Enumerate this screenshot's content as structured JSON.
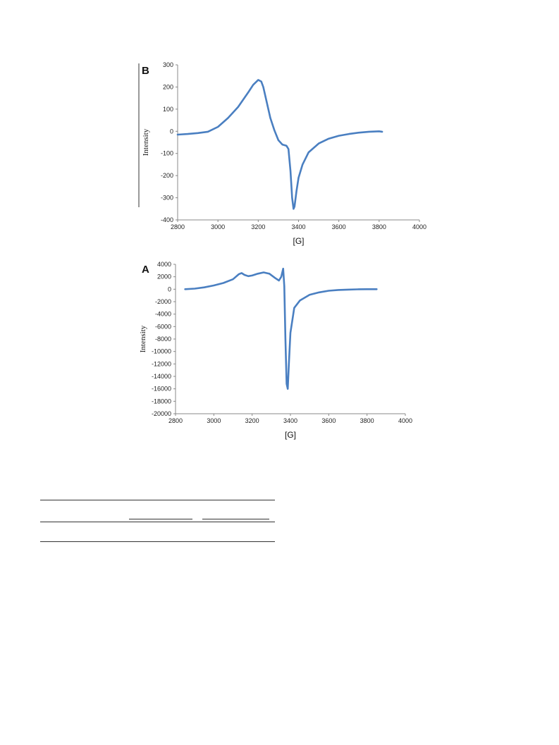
{
  "chart_data": [
    {
      "type": "line",
      "panel": "B",
      "xlabel": "[G]",
      "ylabel": "Intensity",
      "xlim": [
        2800,
        4000
      ],
      "ylim": [
        -400,
        300
      ],
      "xticks": [
        2800,
        3000,
        3200,
        3400,
        3600,
        3800,
        4000
      ],
      "yticks": [
        300,
        200,
        100,
        0,
        -100,
        -200,
        -300,
        -400
      ],
      "color": "#4a7fc1",
      "series": [
        {
          "x": [
            2800,
            2850,
            2900,
            2950,
            3000,
            3050,
            3100,
            3150,
            3175,
            3200,
            3215,
            3225,
            3240,
            3260,
            3280,
            3300,
            3320,
            3340,
            3350,
            3360,
            3368,
            3375,
            3380,
            3390,
            3400,
            3420,
            3450,
            3500,
            3550,
            3600,
            3650,
            3700,
            3750,
            3800,
            3815
          ],
          "y": [
            -15,
            -12,
            -8,
            -2,
            20,
            60,
            110,
            175,
            210,
            232,
            225,
            200,
            140,
            60,
            5,
            -40,
            -60,
            -65,
            -80,
            -180,
            -300,
            -350,
            -340,
            -270,
            -210,
            -150,
            -95,
            -55,
            -33,
            -20,
            -12,
            -6,
            -2,
            0,
            -2
          ]
        }
      ]
    },
    {
      "type": "line",
      "panel": "A",
      "xlabel": "[G]",
      "ylabel": "Intensity",
      "xlim": [
        2800,
        4000
      ],
      "ylim": [
        -20000,
        4000
      ],
      "xticks": [
        2800,
        3000,
        3200,
        3400,
        3600,
        3800,
        4000
      ],
      "yticks": [
        4000,
        2000,
        0,
        -2000,
        -4000,
        -6000,
        -8000,
        -10000,
        -12000,
        -14000,
        -16000,
        -18000,
        -20000
      ],
      "color": "#4a7fc1",
      "series": [
        {
          "x": [
            2850,
            2900,
            2950,
            3000,
            3050,
            3100,
            3130,
            3145,
            3160,
            3180,
            3200,
            3230,
            3260,
            3290,
            3320,
            3340,
            3352,
            3362,
            3368,
            3374,
            3380,
            3386,
            3392,
            3400,
            3420,
            3450,
            3500,
            3550,
            3600,
            3650,
            3700,
            3750,
            3800,
            3850
          ],
          "y": [
            0,
            100,
            300,
            600,
            1000,
            1600,
            2400,
            2600,
            2300,
            2100,
            2200,
            2500,
            2700,
            2500,
            1800,
            1400,
            2000,
            3300,
            500,
            -8000,
            -15200,
            -16000,
            -12000,
            -7000,
            -3000,
            -1800,
            -900,
            -500,
            -250,
            -120,
            -60,
            -20,
            0,
            0
          ]
        }
      ]
    }
  ]
}
